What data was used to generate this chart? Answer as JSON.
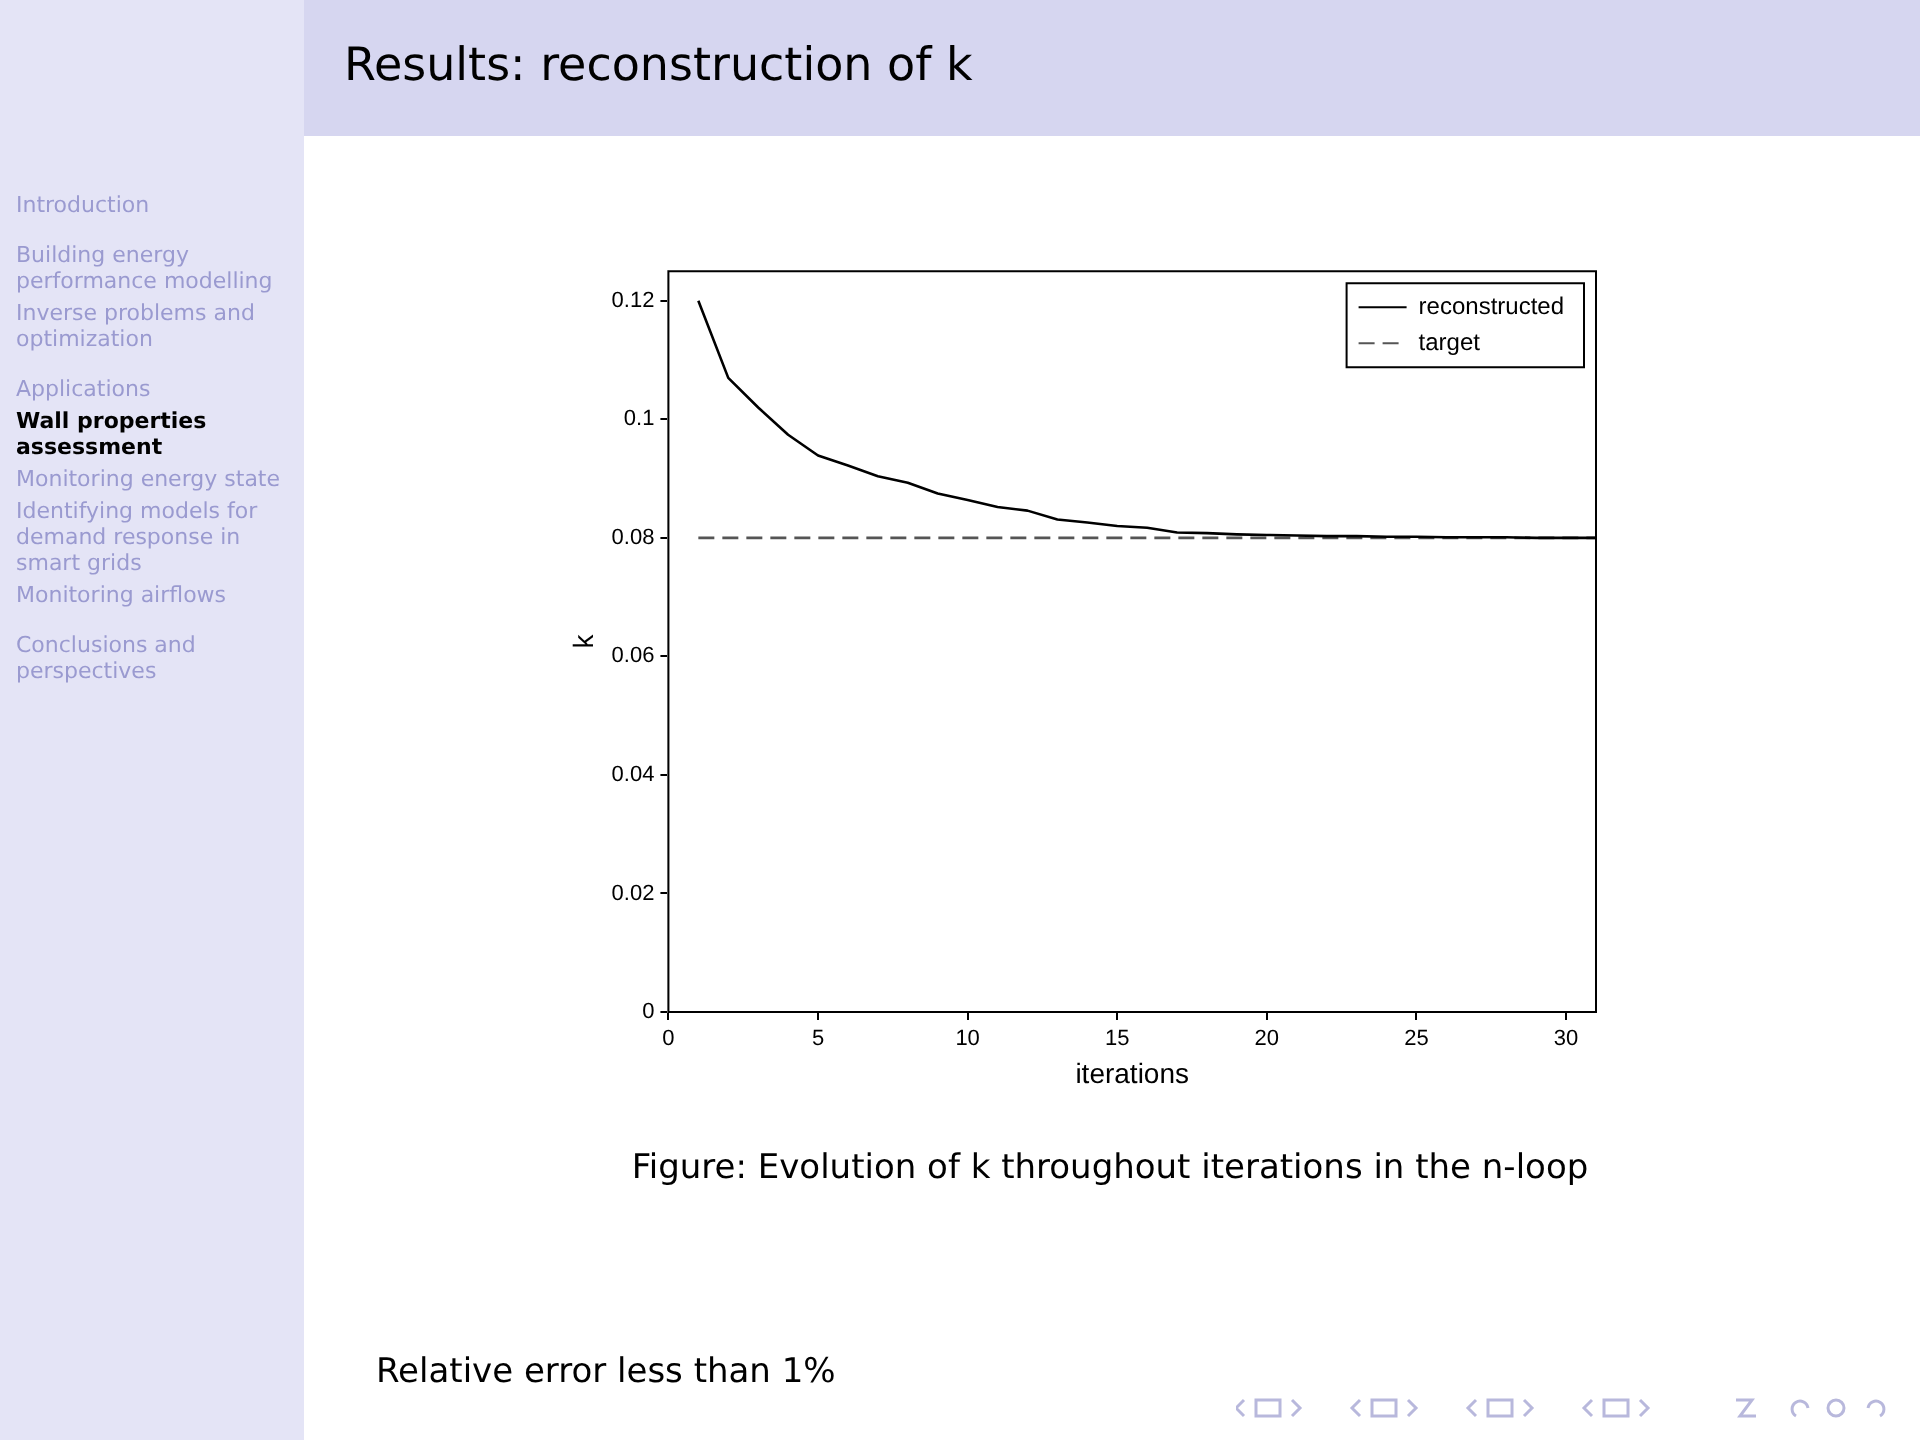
{
  "chart_data": {
    "type": "line",
    "title": "Results: reconstruction of k",
    "xlabel": "iterations",
    "ylabel": "k",
    "x": [
      1,
      2,
      3,
      4,
      5,
      6,
      7,
      8,
      9,
      10,
      11,
      12,
      13,
      14,
      15,
      16,
      17,
      18,
      19,
      20,
      21,
      22,
      23,
      24,
      25,
      26,
      27,
      28,
      29,
      30,
      31
    ],
    "series": [
      {
        "name": "reconstructed",
        "color": "#000000",
        "line_style": "solid",
        "values": [
          0.12,
          0.107,
          0.102,
          0.0974,
          0.0939,
          0.0922,
          0.0904,
          0.0893,
          0.0875,
          0.0864,
          0.0852,
          0.0846,
          0.0831,
          0.0826,
          0.082,
          0.0817,
          0.0809,
          0.0808,
          0.0806,
          0.0805,
          0.0804,
          0.0803,
          0.0803,
          0.0802,
          0.0802,
          0.0801,
          0.0801,
          0.0801,
          0.08,
          0.08,
          0.08
        ]
      },
      {
        "name": "target",
        "color": "#555555",
        "line_style": "dashed",
        "x": [
          1,
          31
        ],
        "values": [
          0.08,
          0.08
        ]
      }
    ],
    "xlim": [
      0,
      31
    ],
    "xticks": [
      0,
      5,
      10,
      15,
      20,
      25,
      30
    ],
    "ylim": [
      0,
      0.125
    ],
    "yticks": [
      0,
      0.02,
      0.04,
      0.06,
      0.08,
      0.1,
      0.12
    ],
    "grid": false,
    "legend": "top right",
    "marker": "none",
    "annotations": [
      "Figure: Evolution of k throughout iterations in the n-loop",
      "Relative error less than 1%",
      "Introduction",
      "Building energy performance modelling",
      "Inverse problems and optimization",
      "Applications",
      "Wall properties assessment",
      "Monitoring energy state",
      "Identifying models for demand response in smart grids",
      "Monitoring airflows",
      "Conclusions and perspectives"
    ]
  }
}
